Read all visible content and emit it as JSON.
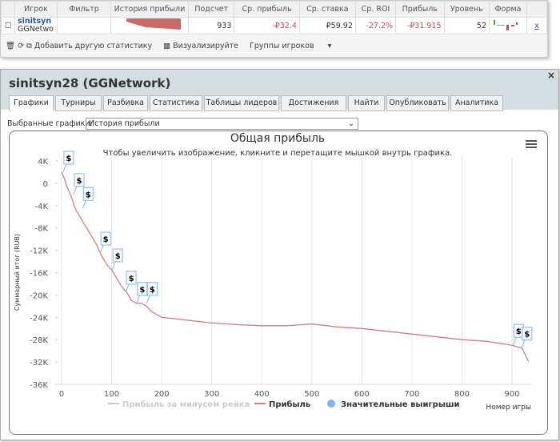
{
  "table": {
    "headers": [
      "Игрок",
      "Фильтр",
      "История прибыли",
      "Подсчет",
      "Ср. прибыль",
      "Ср. ставка",
      "Ср. ROI",
      "Прибыль",
      "Уровень",
      "Форма"
    ],
    "row": {
      "player": "sinitsyn",
      "network": "GGNetwo",
      "count": 933,
      "avg_profit": "-₽32.4",
      "avg_stake": "₽59.92",
      "avg_roi": "-27.2%",
      "profit": "-₽31.915",
      "level": 52,
      "remove": "x"
    }
  },
  "toolbar": [
    "Добавить другую статистику",
    "Визуализируйте",
    "Группы игроков"
  ],
  "panel": {
    "title": "sinitsyn28 (GGNetwork)",
    "close": "×",
    "tabs": [
      "Графики",
      "Турниры",
      "Разбивка",
      "Статистика",
      "Таблицы лидеров",
      "Достижения",
      "Найти",
      "Опубликовать",
      "Аналитика"
    ],
    "active_tab": 0,
    "select_label": "Выбранные графики:",
    "select_value": "История прибыли"
  },
  "chart_data": {
    "type": "line",
    "title": "Общая прибыль",
    "subtitle": "Чтобы увеличить изображение, кликните и перетащите мышкой внутрь графика.",
    "y_label": "Суммарный итог (RUB)",
    "x_label": "Номер игры",
    "xlim": [
      -8,
      940
    ],
    "xticks": [
      0,
      100,
      200,
      300,
      400,
      500,
      600,
      700,
      800,
      900
    ],
    "ylim": [
      -36000,
      4000
    ],
    "yticks": [
      {
        "value": 4000,
        "label": "4K"
      },
      0,
      {
        "value": -4000,
        "label": "-4K"
      },
      {
        "value": -8000,
        "label": "-8K"
      },
      {
        "value": -12000,
        "label": "-12K"
      },
      {
        "value": -16000,
        "label": "-16K"
      },
      {
        "value": -20000,
        "label": "-20K"
      },
      {
        "value": -24000,
        "label": "-24K"
      },
      {
        "value": -28000,
        "label": "-28K"
      },
      {
        "value": -32000,
        "label": "-32K"
      },
      {
        "value": -36000,
        "label": "-36K"
      }
    ],
    "grid": "x",
    "x": [
      0,
      5,
      10,
      15,
      20,
      25,
      30,
      40,
      50,
      60,
      70,
      80,
      90,
      100,
      110,
      120,
      130,
      140,
      150,
      160,
      170,
      180,
      200,
      250,
      300,
      350,
      400,
      450,
      500,
      550,
      600,
      650,
      700,
      750,
      800,
      850,
      900,
      920,
      933
    ],
    "series": [
      {
        "name": "Прибыль за минусом рейка",
        "color": "#cccccc",
        "visible": false
      },
      {
        "name": "Прибыль",
        "color": "#d08080",
        "values": [
          2000,
          1000,
          -500,
          -1500,
          -2500,
          -4000,
          -5000,
          -6500,
          -8000,
          -9500,
          -11000,
          -13000,
          -14500,
          -15500,
          -17000,
          -18500,
          -19500,
          -21000,
          -21500,
          -21500,
          -22000,
          -23000,
          -24000,
          -24500,
          -25000,
          -25300,
          -25500,
          -25500,
          -25200,
          -25700,
          -26000,
          -26500,
          -27000,
          -27500,
          -28000,
          -28300,
          -29000,
          -29500,
          -31915
        ]
      },
      {
        "name": "Значительные выигрыши",
        "type": "scatter",
        "color": "#7cb5ec",
        "flag_text": "$",
        "x": [
          3,
          24,
          42,
          77,
          101,
          128,
          150,
          170,
          902,
          919
        ],
        "values": [
          2000,
          -2000,
          -4500,
          -12500,
          -15500,
          -19500,
          -21500,
          -21500,
          -29000,
          -29500
        ]
      }
    ]
  }
}
